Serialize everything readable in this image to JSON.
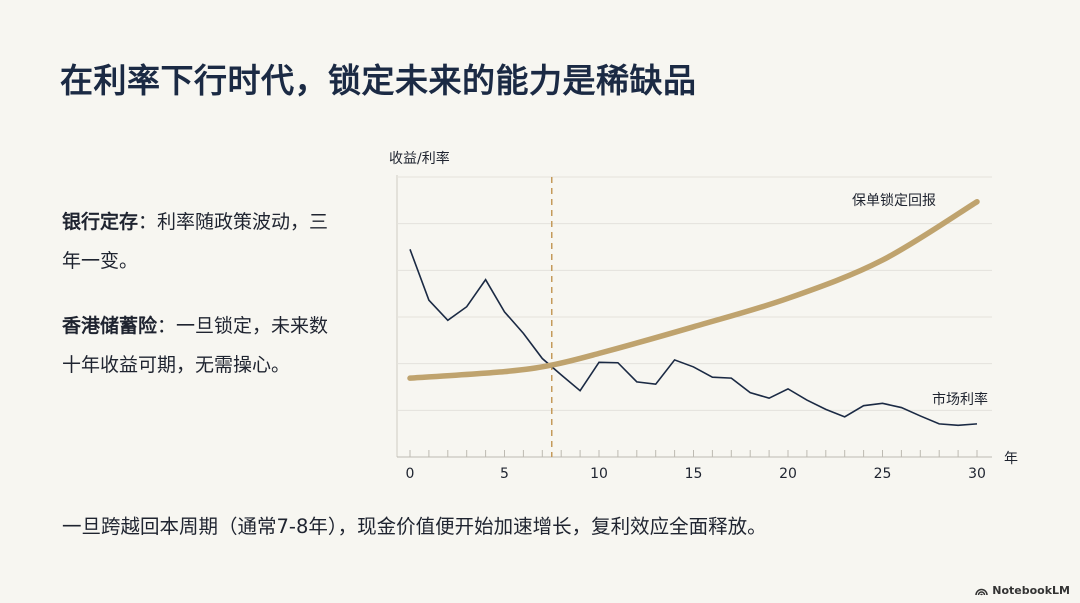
{
  "title": "在利率下行时代，锁定未来的能力是稀缺品",
  "points": [
    {
      "bold": "银行定存",
      "text": "：利率随政策波动，三年一变。"
    },
    {
      "bold": "香港储蓄险",
      "text": "：一旦锁定，未来数十年收益可期，无需操心。"
    }
  ],
  "footer_text": "一旦跨越回本周期（通常7-8年），现金价值便开始加速增长，复利效应全面释放。",
  "brand": "NotebookLM",
  "colors": {
    "policy": "#bfa36e",
    "market": "#1b2a44",
    "marker": "#c49a5a",
    "grid": "#e4e2dc"
  },
  "chart_data": {
    "type": "line",
    "ylabel": "收益/利率",
    "xlabel": "年",
    "xlim": [
      0,
      30
    ],
    "ylim": [
      0,
      6
    ],
    "y_ticks_labeled": false,
    "grid": true,
    "x_tick_labels": [
      "0",
      "5",
      "10",
      "15",
      "20",
      "25",
      "30"
    ],
    "vertical_marker_x": 7.5,
    "series": [
      {
        "name": "保单锁定回报",
        "x": [
          0,
          5,
          7.5,
          10,
          15,
          20,
          25,
          30
        ],
        "y": [
          1.69,
          1.83,
          1.97,
          2.22,
          2.79,
          3.4,
          4.22,
          5.47
        ]
      },
      {
        "name": "市场利率",
        "x": [
          0,
          1,
          2,
          3,
          4,
          5,
          6,
          7,
          8,
          9,
          10,
          11,
          12,
          13,
          14,
          15,
          16,
          17,
          18,
          19,
          20,
          21,
          22,
          23,
          24,
          25,
          26,
          27,
          28,
          29,
          30
        ],
        "y": [
          4.45,
          3.36,
          2.93,
          3.22,
          3.8,
          3.11,
          2.65,
          2.11,
          1.76,
          1.42,
          2.03,
          2.02,
          1.61,
          1.56,
          2.08,
          1.93,
          1.71,
          1.69,
          1.38,
          1.26,
          1.46,
          1.22,
          1.02,
          0.86,
          1.1,
          1.15,
          1.06,
          0.88,
          0.71,
          0.68,
          0.71
        ]
      }
    ]
  }
}
